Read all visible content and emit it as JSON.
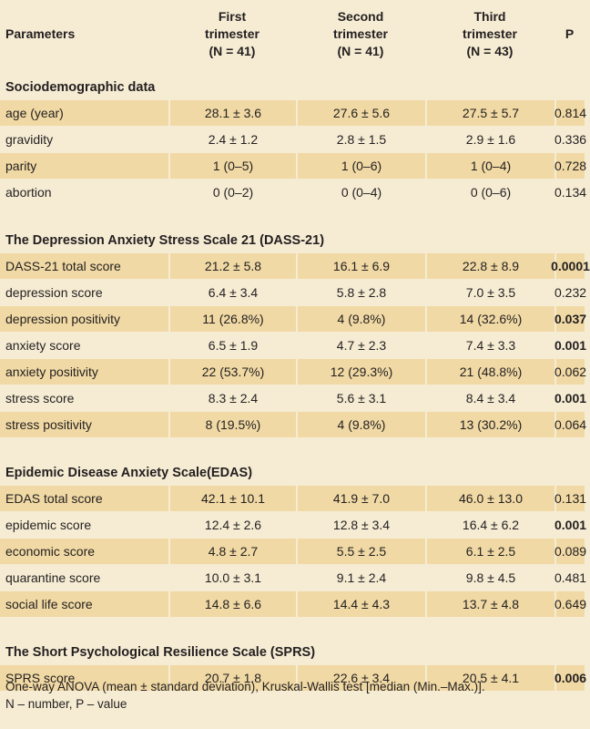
{
  "header": {
    "col1": "Parameters",
    "col2": "First\ntrimester\n(N = 41)",
    "col3": "Second\ntrimester\n(N = 41)",
    "col4": "Third\ntrimester\n(N = 43)",
    "col5": "P"
  },
  "sections": [
    {
      "title": "Sociodemographic data",
      "rows": [
        {
          "label": "age (year)",
          "first": "28.1 ± 3.6",
          "second": "27.6 ± 5.6",
          "third": "27.5 ± 5.7",
          "p": "0.814",
          "p_bold": false
        },
        {
          "label": "gravidity",
          "first": "2.4 ± 1.2",
          "second": "2.8 ± 1.5",
          "third": "2.9 ± 1.6",
          "p": "0.336",
          "p_bold": false
        },
        {
          "label": "parity",
          "first": "1 (0–5)",
          "second": "1 (0–6)",
          "third": "1 (0–4)",
          "p": "0.728",
          "p_bold": false
        },
        {
          "label": "abortion",
          "first": "0 (0–2)",
          "second": "0 (0–4)",
          "third": "0 (0–6)",
          "p": "0.134",
          "p_bold": false
        }
      ]
    },
    {
      "title": "The Depression Anxiety Stress Scale 21 (DASS-21)",
      "rows": [
        {
          "label": "DASS-21 total score",
          "first": "21.2 ± 5.8",
          "second": "16.1 ± 6.9",
          "third": "22.8 ± 8.9",
          "p": "0.0001",
          "p_bold": true
        },
        {
          "label": "depression score",
          "first": "6.4 ± 3.4",
          "second": "5.8 ± 2.8",
          "third": "7.0 ± 3.5",
          "p": "0.232",
          "p_bold": false
        },
        {
          "label": "depression positivity",
          "first": "11 (26.8%)",
          "second": "4 (9.8%)",
          "third": "14 (32.6%)",
          "p": "0.037",
          "p_bold": true
        },
        {
          "label": "anxiety score",
          "first": "6.5 ± 1.9",
          "second": "4.7 ± 2.3",
          "third": "7.4 ± 3.3",
          "p": "0.001",
          "p_bold": true
        },
        {
          "label": "anxiety positivity",
          "first": "22 (53.7%)",
          "second": "12 (29.3%)",
          "third": "21 (48.8%)",
          "p": "0.062",
          "p_bold": false
        },
        {
          "label": "stress score",
          "first": "8.3 ± 2.4",
          "second": "5.6 ± 3.1",
          "third": "8.4 ± 3.4",
          "p": "0.001",
          "p_bold": true
        },
        {
          "label": "stress positivity",
          "first": "8 (19.5%)",
          "second": "4 (9.8%)",
          "third": "13 (30.2%)",
          "p": "0.064",
          "p_bold": false
        }
      ]
    },
    {
      "title": "Epidemic Disease Anxiety Scale(EDAS)",
      "rows": [
        {
          "label": "EDAS total score",
          "first": "42.1 ± 10.1",
          "second": "41.9 ± 7.0",
          "third": "46.0 ± 13.0",
          "p": "0.131",
          "p_bold": false
        },
        {
          "label": "epidemic score",
          "first": "12.4 ± 2.6",
          "second": "12.8 ± 3.4",
          "third": "16.4 ± 6.2",
          "p": "0.001",
          "p_bold": true
        },
        {
          "label": "economic score",
          "first": "4.8 ± 2.7",
          "second": "5.5 ± 2.5",
          "third": "6.1 ± 2.5",
          "p": "0.089",
          "p_bold": false
        },
        {
          "label": "quarantine score",
          "first": "10.0 ± 3.1",
          "second": "9.1 ± 2.4",
          "third": "9.8 ± 4.5",
          "p": "0.481",
          "p_bold": false
        },
        {
          "label": "social life score",
          "first": "14.8 ± 6.6",
          "second": "14.4 ± 4.3",
          "third": "13.7 ± 4.8",
          "p": "0.649",
          "p_bold": false
        }
      ]
    },
    {
      "title": "The Short Psychological Resilience Scale (SPRS)",
      "rows": [
        {
          "label": "SPRS score",
          "first": "20.7 ± 1.8",
          "second": "22.6 ± 3.4",
          "third": "20.5 ± 4.1",
          "p": "0.006",
          "p_bold": true
        }
      ]
    }
  ],
  "footnote": {
    "line1": "One-way ANOVA (mean ± standard deviation), Kruskal-Wallis test [median (Min.–Max.)].",
    "line2": "N – number, P – value"
  },
  "colors": {
    "background": "#f6ecd3",
    "stripe": "#f0d9a4",
    "text": "#231f20"
  }
}
